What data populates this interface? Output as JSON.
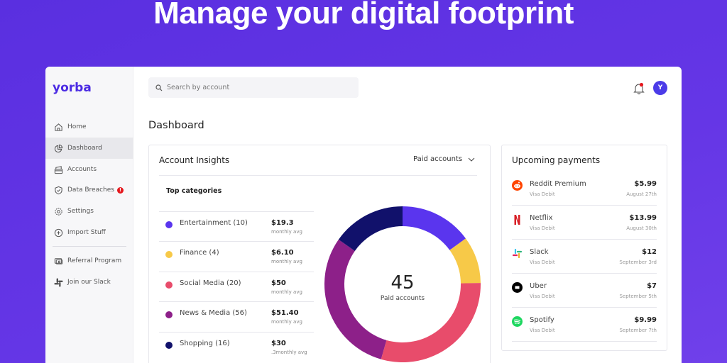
{
  "headline": "Manage your digital footprint",
  "sidebar": {
    "logo": "yorba",
    "items": [
      {
        "label": "Home",
        "icon": "home-icon"
      },
      {
        "label": "Dashboard",
        "icon": "pie-chart-icon",
        "active": true
      },
      {
        "label": "Accounts",
        "icon": "wallet-icon"
      },
      {
        "label": "Data Breaches",
        "icon": "shield-check-icon",
        "badge": "!"
      },
      {
        "label": "Settings",
        "icon": "gear-icon"
      },
      {
        "label": "Import Stuff",
        "icon": "plus-circle-icon"
      },
      {
        "label": "Referral Program",
        "icon": "ticket-icon"
      },
      {
        "label": "Join our Slack",
        "icon": "slack-icon"
      }
    ]
  },
  "header": {
    "search_placeholder": "Search by account",
    "avatar_initial": "Y"
  },
  "page_title": "Dashboard",
  "insights": {
    "title": "Account Insights",
    "dropdown": "Paid accounts",
    "top_categories": "Top categories",
    "categories": [
      {
        "label": "Entertainment (10)",
        "value": "$19.3",
        "sub": "monthly avg",
        "color": "#5a35ee"
      },
      {
        "label": "Finance (4)",
        "value": "$6.10",
        "sub": "monthly avg",
        "color": "#f7c948"
      },
      {
        "label": "Social Media (20)",
        "value": "$50",
        "sub": "monthly avg",
        "color": "#e84c6b"
      },
      {
        "label": "News & Media (56)",
        "value": "$51.40",
        "sub": "monthly avg",
        "color": "#8d2089"
      },
      {
        "label": "Shopping (16)",
        "value": "$30",
        "sub": ".3monthly avg",
        "color": "#11116b"
      }
    ],
    "donut": {
      "total": "45",
      "label": "Paid accounts",
      "segments_deg": [
        54,
        35,
        107,
        109,
        55
      ]
    }
  },
  "payments": {
    "title": "Upcoming payments",
    "items": [
      {
        "name": "Reddit Premium",
        "method": "Visa Debit",
        "amount": "$5.99",
        "date": "August 27th",
        "icon": "reddit-icon"
      },
      {
        "name": "Netflix",
        "method": "Visa Debit",
        "amount": "$13.99",
        "date": "August 30th",
        "icon": "netflix-icon"
      },
      {
        "name": "Slack",
        "method": "Visa Debit",
        "amount": "$12",
        "date": "September 3rd",
        "icon": "slack-icon"
      },
      {
        "name": "Uber",
        "method": "Visa Debit",
        "amount": "$7",
        "date": "September 5th",
        "icon": "uber-icon"
      },
      {
        "name": "Spotify",
        "method": "Visa Debit",
        "amount": "$9.99",
        "date": "September 7th",
        "icon": "spotify-icon"
      }
    ]
  }
}
